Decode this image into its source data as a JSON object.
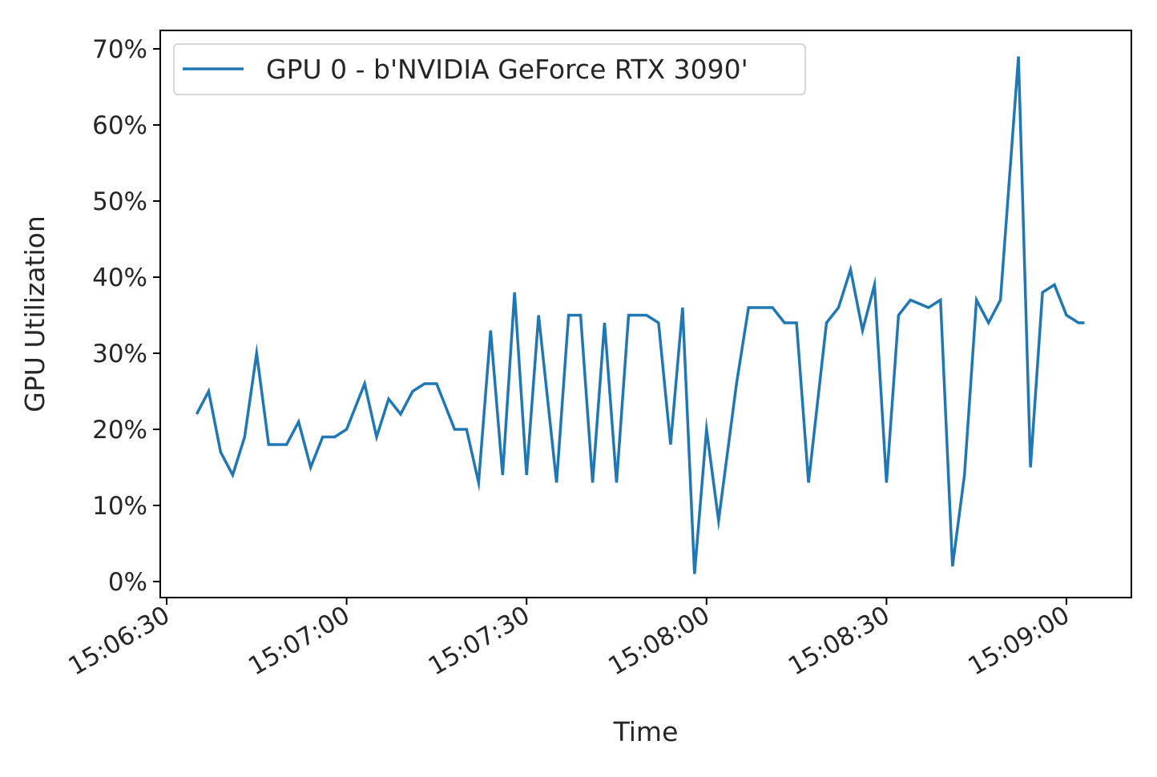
{
  "chart_data": {
    "type": "line",
    "title": "",
    "xlabel": "Time",
    "ylabel": "GPU Utilization",
    "xlim": [
      "15:06:30",
      "15:09:06"
    ],
    "ylim": [
      -2,
      72
    ],
    "x_ticks": [
      "15:06:30",
      "15:07:00",
      "15:07:30",
      "15:08:00",
      "15:08:30",
      "15:09:00"
    ],
    "y_ticks": [
      0,
      10,
      20,
      30,
      40,
      50,
      60,
      70
    ],
    "y_tick_labels": [
      "0%",
      "10%",
      "20%",
      "30%",
      "40%",
      "50%",
      "60%",
      "70%"
    ],
    "grid": false,
    "legend_position": "upper-left",
    "series_color": "#1f77b4",
    "series": [
      {
        "name": "GPU 0 - b'NVIDIA GeForce RTX 3090'",
        "x": [
          "15:06:35",
          "15:06:37",
          "15:06:39",
          "15:06:41",
          "15:06:43",
          "15:06:45",
          "15:06:47",
          "15:06:50",
          "15:06:52",
          "15:06:54",
          "15:06:56",
          "15:06:58",
          "15:07:00",
          "15:07:03",
          "15:07:05",
          "15:07:07",
          "15:07:09",
          "15:07:11",
          "15:07:13",
          "15:07:15",
          "15:07:18",
          "15:07:20",
          "15:07:22",
          "15:07:24",
          "15:07:26",
          "15:07:28",
          "15:07:30",
          "15:07:32",
          "15:07:35",
          "15:07:37",
          "15:07:39",
          "15:07:41",
          "15:07:43",
          "15:07:45",
          "15:07:47",
          "15:07:50",
          "15:07:52",
          "15:07:54",
          "15:07:56",
          "15:07:58",
          "15:08:00",
          "15:08:02",
          "15:08:05",
          "15:08:07",
          "15:08:09",
          "15:08:11",
          "15:08:13",
          "15:08:15",
          "15:08:17",
          "15:08:20",
          "15:08:22",
          "15:08:24",
          "15:08:26",
          "15:08:28",
          "15:08:30",
          "15:08:32",
          "15:08:34",
          "15:08:37",
          "15:08:39",
          "15:08:41",
          "15:08:43",
          "15:08:45",
          "15:08:47",
          "15:08:49",
          "15:08:52",
          "15:08:54",
          "15:08:56",
          "15:08:58",
          "15:09:00",
          "15:09:02",
          "15:09:03"
        ],
        "values": [
          22,
          25,
          17,
          14,
          19,
          30,
          18,
          18,
          21,
          15,
          19,
          19,
          20,
          26,
          19,
          24,
          22,
          25,
          26,
          26,
          20,
          20,
          13,
          33,
          14,
          38,
          14,
          35,
          13,
          35,
          35,
          13,
          34,
          13,
          35,
          35,
          34,
          18,
          36,
          1,
          20,
          8,
          26,
          36,
          36,
          36,
          34,
          34,
          13,
          34,
          36,
          41,
          33,
          39,
          13,
          35,
          37,
          36,
          37,
          2,
          14,
          37,
          34,
          37,
          69,
          15,
          38,
          39,
          35,
          34,
          34
        ]
      }
    ]
  }
}
